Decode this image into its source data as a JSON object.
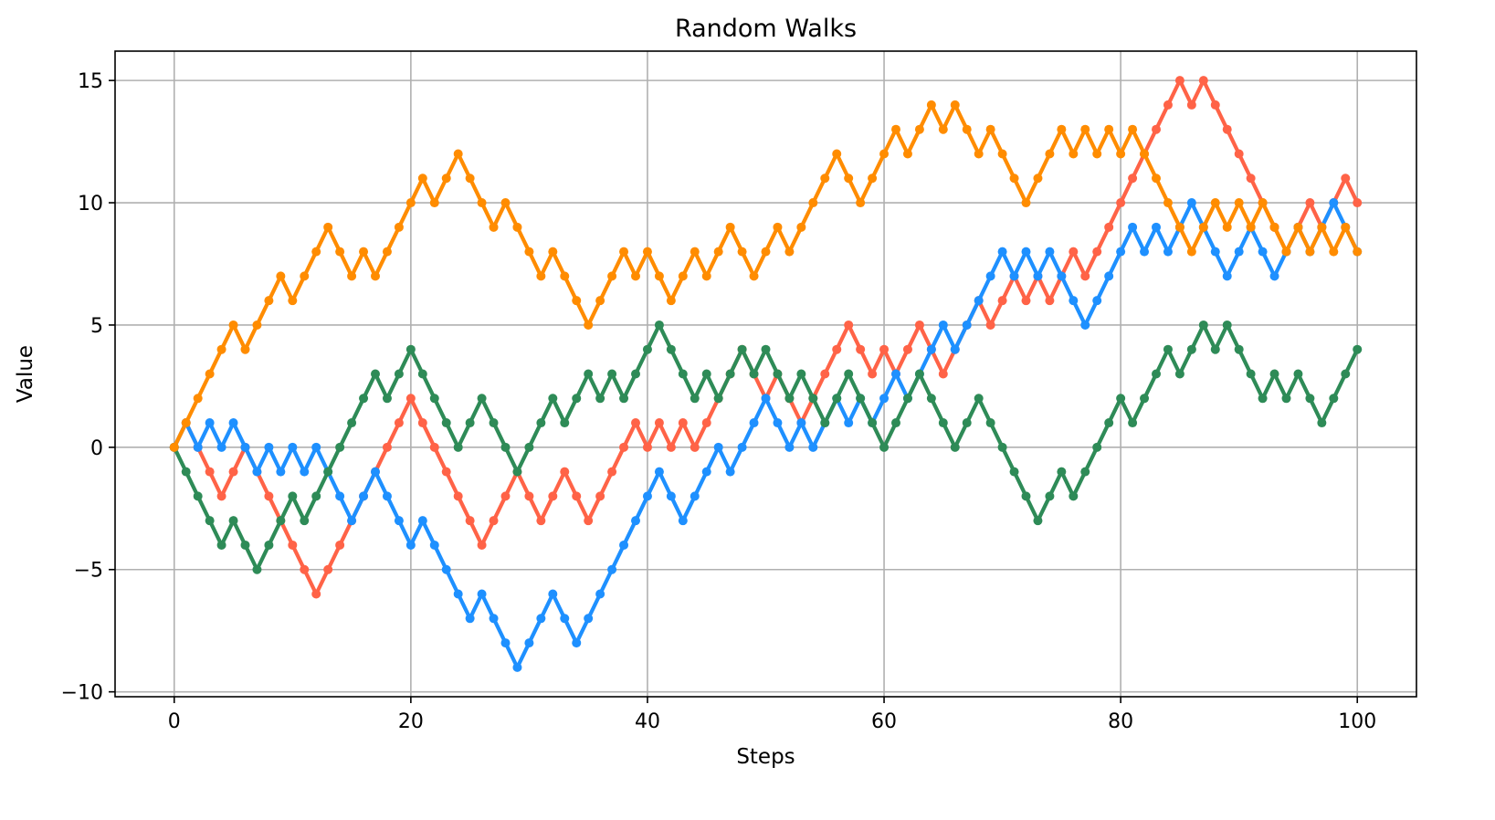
{
  "chart_data": {
    "type": "line",
    "title": "Random Walks",
    "xlabel": "Steps",
    "ylabel": "Value",
    "xlim": [
      -5,
      105
    ],
    "ylim": [
      -10.2,
      16.2
    ],
    "xticks": [
      0,
      20,
      40,
      60,
      80,
      100
    ],
    "xtick_labels": [
      "0",
      "20",
      "40",
      "60",
      "80",
      "100"
    ],
    "yticks": [
      -10,
      -5,
      0,
      5,
      10,
      15
    ],
    "ytick_labels": [
      "−10",
      "−5",
      "0",
      "5",
      "10",
      "15"
    ],
    "grid": true,
    "legend": "none",
    "series": [
      {
        "color": "#FF6347",
        "values": [
          0,
          1,
          0,
          -1,
          -2,
          -1,
          0,
          -1,
          -2,
          -3,
          -4,
          -5,
          -6,
          -5,
          -4,
          -3,
          -2,
          -1,
          0,
          1,
          2,
          1,
          0,
          -1,
          -2,
          -3,
          -4,
          -3,
          -2,
          -1,
          -2,
          -3,
          -2,
          -1,
          -2,
          -3,
          -2,
          -1,
          0,
          1,
          0,
          1,
          0,
          1,
          0,
          1,
          2,
          3,
          4,
          3,
          2,
          3,
          2,
          1,
          2,
          3,
          4,
          5,
          4,
          3,
          4,
          3,
          4,
          5,
          4,
          3,
          4,
          5,
          6,
          5,
          6,
          7,
          6,
          7,
          6,
          7,
          8,
          7,
          8,
          9,
          10,
          11,
          12,
          13,
          14,
          15,
          14,
          15,
          14,
          13,
          12,
          11,
          10,
          9,
          8,
          9,
          10,
          9,
          10,
          11,
          10
        ]
      },
      {
        "color": "#1E90FF",
        "values": [
          0,
          1,
          0,
          1,
          0,
          1,
          0,
          -1,
          0,
          -1,
          0,
          -1,
          0,
          -1,
          -2,
          -3,
          -2,
          -1,
          -2,
          -3,
          -4,
          -3,
          -4,
          -5,
          -6,
          -7,
          -6,
          -7,
          -8,
          -9,
          -8,
          -7,
          -6,
          -7,
          -8,
          -7,
          -6,
          -5,
          -4,
          -3,
          -2,
          -1,
          -2,
          -3,
          -2,
          -1,
          0,
          -1,
          0,
          1,
          2,
          1,
          0,
          1,
          0,
          1,
          2,
          1,
          2,
          1,
          2,
          3,
          2,
          3,
          4,
          5,
          4,
          5,
          6,
          7,
          8,
          7,
          8,
          7,
          8,
          7,
          6,
          5,
          6,
          7,
          8,
          9,
          8,
          9,
          8,
          9,
          10,
          9,
          8,
          7,
          8,
          9,
          8,
          7,
          8,
          9,
          8,
          9,
          10,
          9,
          8
        ]
      },
      {
        "color": "#2E8B57",
        "values": [
          0,
          -1,
          -2,
          -3,
          -4,
          -3,
          -4,
          -5,
          -4,
          -3,
          -2,
          -3,
          -2,
          -1,
          0,
          1,
          2,
          3,
          2,
          3,
          4,
          3,
          2,
          1,
          0,
          1,
          2,
          1,
          0,
          -1,
          0,
          1,
          2,
          1,
          2,
          3,
          2,
          3,
          2,
          3,
          4,
          5,
          4,
          3,
          2,
          3,
          2,
          3,
          4,
          3,
          4,
          3,
          2,
          3,
          2,
          1,
          2,
          3,
          2,
          1,
          0,
          1,
          2,
          3,
          2,
          1,
          0,
          1,
          2,
          1,
          0,
          -1,
          -2,
          -3,
          -2,
          -1,
          -2,
          -1,
          0,
          1,
          2,
          1,
          2,
          3,
          4,
          3,
          4,
          5,
          4,
          5,
          4,
          3,
          2,
          3,
          2,
          3,
          2,
          1,
          2,
          3,
          4
        ]
      },
      {
        "color": "#FF8C00",
        "values": [
          0,
          1,
          2,
          3,
          4,
          5,
          4,
          5,
          6,
          7,
          6,
          7,
          8,
          9,
          8,
          7,
          8,
          7,
          8,
          9,
          10,
          11,
          10,
          11,
          12,
          11,
          10,
          9,
          10,
          9,
          8,
          7,
          8,
          7,
          6,
          5,
          6,
          7,
          8,
          7,
          8,
          7,
          6,
          7,
          8,
          7,
          8,
          9,
          8,
          7,
          8,
          9,
          8,
          9,
          10,
          11,
          12,
          11,
          10,
          11,
          12,
          13,
          12,
          13,
          14,
          13,
          14,
          13,
          12,
          13,
          12,
          11,
          10,
          11,
          12,
          13,
          12,
          13,
          12,
          13,
          12,
          13,
          12,
          11,
          10,
          9,
          8,
          9,
          10,
          9,
          10,
          9,
          10,
          9,
          8,
          9,
          8,
          9,
          8,
          9,
          8
        ]
      }
    ]
  }
}
